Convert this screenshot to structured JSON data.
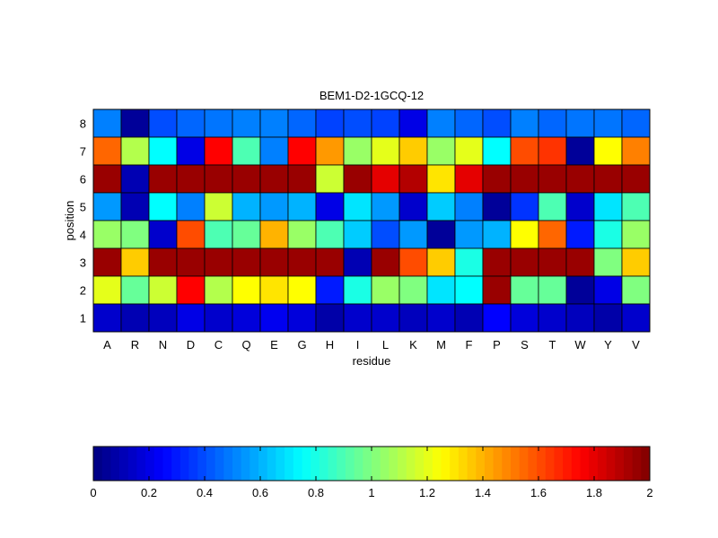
{
  "chart_data": {
    "type": "heatmap",
    "title": "BEM1-D2-1GCQ-12",
    "xlabel": "residue",
    "ylabel": "position",
    "x_categories": [
      "A",
      "R",
      "N",
      "D",
      "C",
      "Q",
      "E",
      "G",
      "H",
      "I",
      "L",
      "K",
      "M",
      "F",
      "P",
      "S",
      "T",
      "W",
      "Y",
      "V"
    ],
    "y_categories": [
      "8",
      "7",
      "6",
      "5",
      "4",
      "3",
      "2",
      "1"
    ],
    "values": [
      [
        0.5,
        0.05,
        0.4,
        0.45,
        0.48,
        0.5,
        0.5,
        0.45,
        0.38,
        0.4,
        0.38,
        0.2,
        0.5,
        0.45,
        0.4,
        0.5,
        0.45,
        0.48,
        0.48,
        0.45
      ],
      [
        1.55,
        1.1,
        0.75,
        0.2,
        1.75,
        0.9,
        0.5,
        1.75,
        1.45,
        1.05,
        1.2,
        1.35,
        1.05,
        1.2,
        0.75,
        1.6,
        1.65,
        0.05,
        1.25,
        1.5
      ],
      [
        1.95,
        0.1,
        1.95,
        1.95,
        1.95,
        1.95,
        1.95,
        1.95,
        1.15,
        1.95,
        1.8,
        1.9,
        1.3,
        1.8,
        1.95,
        1.95,
        1.95,
        1.95,
        1.95,
        1.95
      ],
      [
        0.55,
        0.1,
        0.75,
        0.5,
        1.15,
        0.6,
        0.55,
        0.6,
        0.2,
        0.7,
        0.55,
        0.15,
        0.65,
        0.5,
        0.05,
        0.35,
        0.9,
        0.15,
        0.7,
        0.9
      ],
      [
        1.05,
        1.0,
        0.15,
        1.6,
        0.9,
        0.95,
        1.4,
        1.05,
        0.9,
        0.65,
        0.4,
        0.55,
        0.05,
        0.55,
        0.6,
        1.25,
        1.55,
        0.3,
        0.8,
        1.05
      ],
      [
        1.95,
        1.35,
        1.95,
        1.95,
        1.95,
        1.95,
        1.95,
        1.95,
        1.95,
        0.1,
        1.95,
        1.6,
        1.35,
        0.8,
        1.95,
        1.95,
        1.95,
        1.95,
        1.0,
        1.35
      ],
      [
        1.2,
        0.95,
        1.15,
        1.75,
        1.1,
        1.25,
        1.3,
        1.25,
        0.3,
        0.8,
        1.05,
        1.0,
        0.7,
        0.75,
        1.95,
        0.95,
        0.95,
        0.05,
        0.2,
        1.0
      ],
      [
        0.15,
        0.1,
        0.12,
        0.2,
        0.15,
        0.18,
        0.22,
        0.18,
        0.08,
        0.15,
        0.15,
        0.12,
        0.15,
        0.1,
        0.25,
        0.18,
        0.15,
        0.12,
        0.08,
        0.15
      ]
    ],
    "colormap": "jet",
    "clim": [
      0,
      2
    ],
    "colorbar": {
      "placement": "bottom",
      "ticks": [
        "0",
        "0.2",
        "0.4",
        "0.6",
        "0.8",
        "1",
        "1.2",
        "1.4",
        "1.6",
        "1.8",
        "2"
      ]
    }
  }
}
